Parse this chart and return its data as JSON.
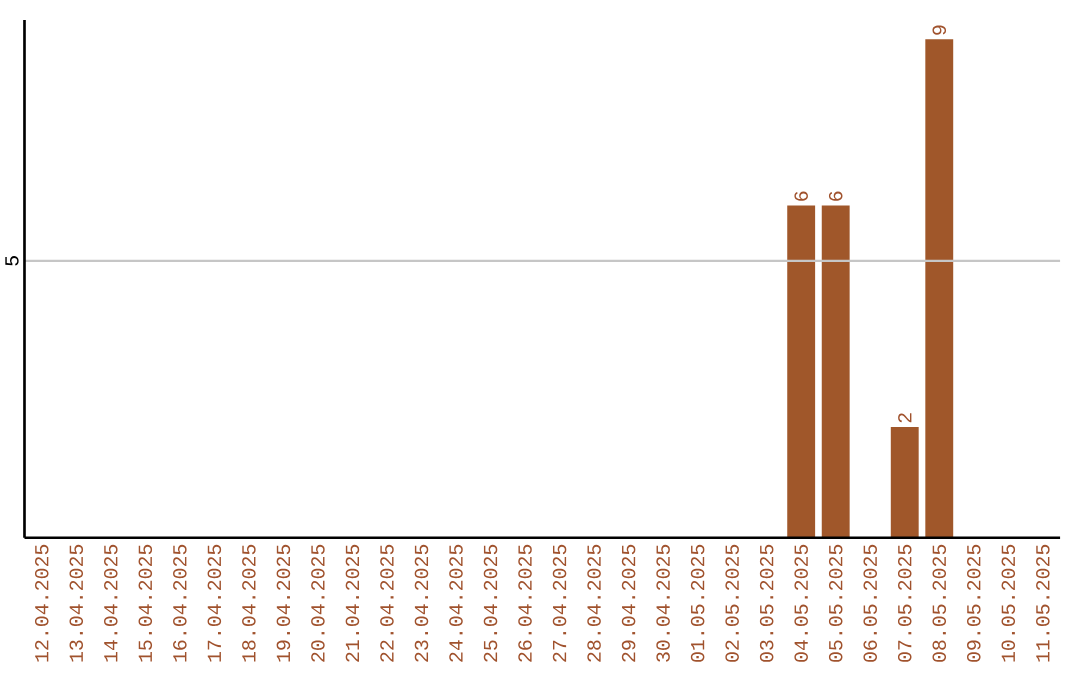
{
  "chart_data": {
    "type": "bar",
    "categories": [
      "12.04.2025",
      "13.04.2025",
      "14.04.2025",
      "15.04.2025",
      "16.04.2025",
      "17.04.2025",
      "18.04.2025",
      "19.04.2025",
      "20.04.2025",
      "21.04.2025",
      "22.04.2025",
      "23.04.2025",
      "24.04.2025",
      "25.04.2025",
      "26.04.2025",
      "27.04.2025",
      "28.04.2025",
      "29.04.2025",
      "30.04.2025",
      "01.05.2025",
      "02.05.2025",
      "03.05.2025",
      "04.05.2025",
      "05.05.2025",
      "06.05.2025",
      "07.05.2025",
      "08.05.2025",
      "09.05.2025",
      "10.05.2025",
      "11.05.2025"
    ],
    "values": [
      null,
      null,
      null,
      null,
      null,
      null,
      null,
      null,
      null,
      null,
      null,
      null,
      null,
      null,
      null,
      null,
      null,
      null,
      null,
      null,
      null,
      null,
      6,
      6,
      null,
      2,
      9,
      null,
      null,
      null
    ],
    "data_labels": true,
    "color": "#a0572a",
    "ylim": [
      0,
      9.35
    ],
    "yticks": [
      5
    ],
    "grid": "y"
  }
}
